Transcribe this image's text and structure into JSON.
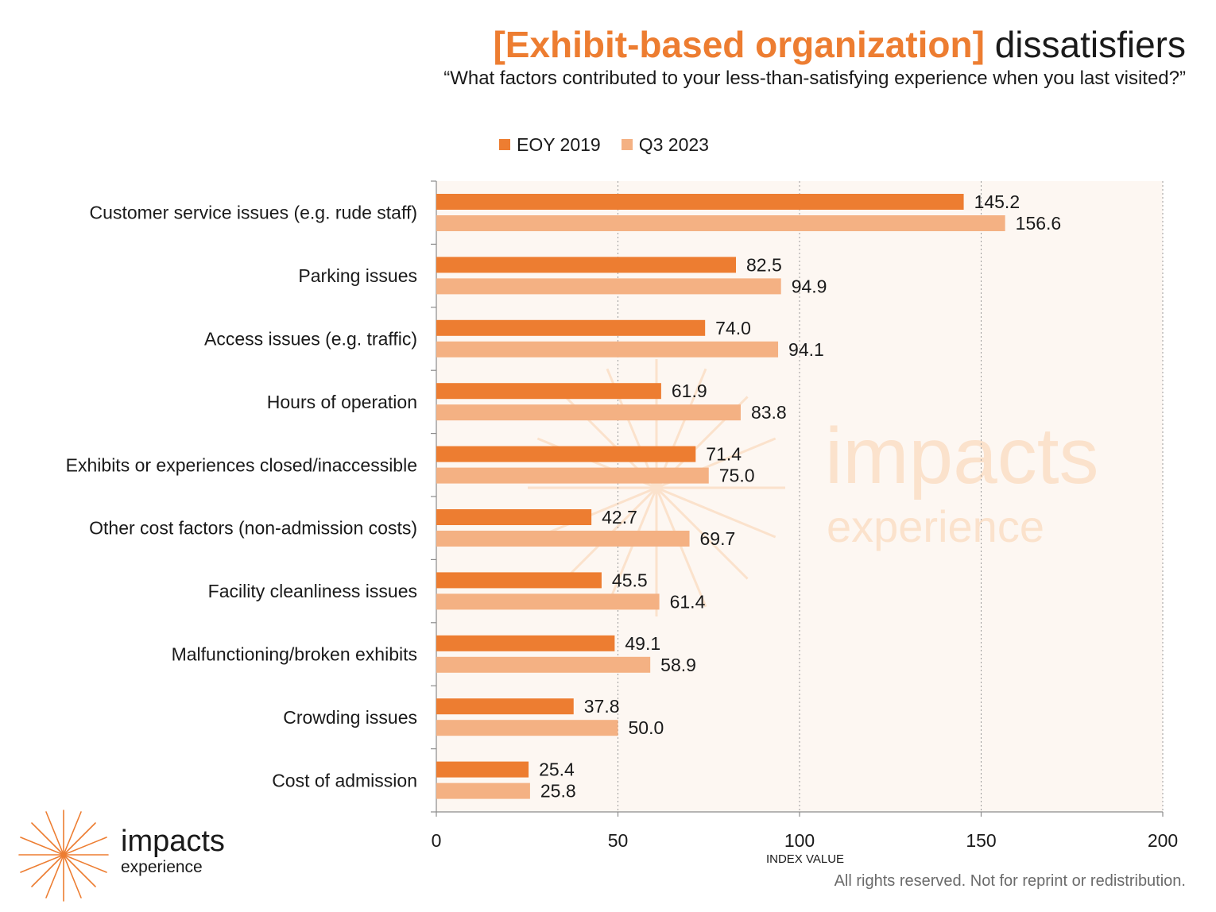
{
  "header": {
    "title_accent": "[Exhibit-based organization]",
    "title_rest": "dissatisfiers",
    "subtitle": "“What factors contributed to your less-than-satisfying experience when you last visited?”"
  },
  "colors": {
    "eoy_2019": "#ED7D31",
    "q3_2023": "#F4B183",
    "plot_background": "#FDF7F2",
    "watermark": "#FBE2CC"
  },
  "watermark": {
    "name": "impacts",
    "sub": "experience"
  },
  "logo": {
    "name": "impacts",
    "sub": "experience"
  },
  "footer": {
    "text": "All rights reserved. Not for reprint or redistribution."
  },
  "chart_data": {
    "type": "bar",
    "orientation": "horizontal",
    "categories": [
      "Customer service issues (e.g. rude staff)",
      "Parking issues",
      "Access issues (e.g. traffic)",
      "Hours of operation",
      "Exhibits or experiences closed/inaccessible",
      "Other cost factors (non-admission costs)",
      "Facility cleanliness issues",
      "Malfunctioning/broken exhibits",
      "Crowding issues",
      "Cost of admission"
    ],
    "series": [
      {
        "name": "EOY 2019",
        "values": [
          145.2,
          82.5,
          74.0,
          61.9,
          71.4,
          42.7,
          45.5,
          49.1,
          37.8,
          25.4
        ]
      },
      {
        "name": "Q3 2023",
        "values": [
          156.6,
          94.9,
          94.1,
          83.8,
          75.0,
          69.7,
          61.4,
          58.9,
          50.0,
          25.8
        ]
      }
    ],
    "xlabel": "INDEX VALUE",
    "ylabel": "",
    "xlim": [
      0,
      200
    ],
    "xticks": [
      0,
      50,
      100,
      150,
      200
    ],
    "legend_position": "top",
    "grid": "vertical dotted"
  }
}
